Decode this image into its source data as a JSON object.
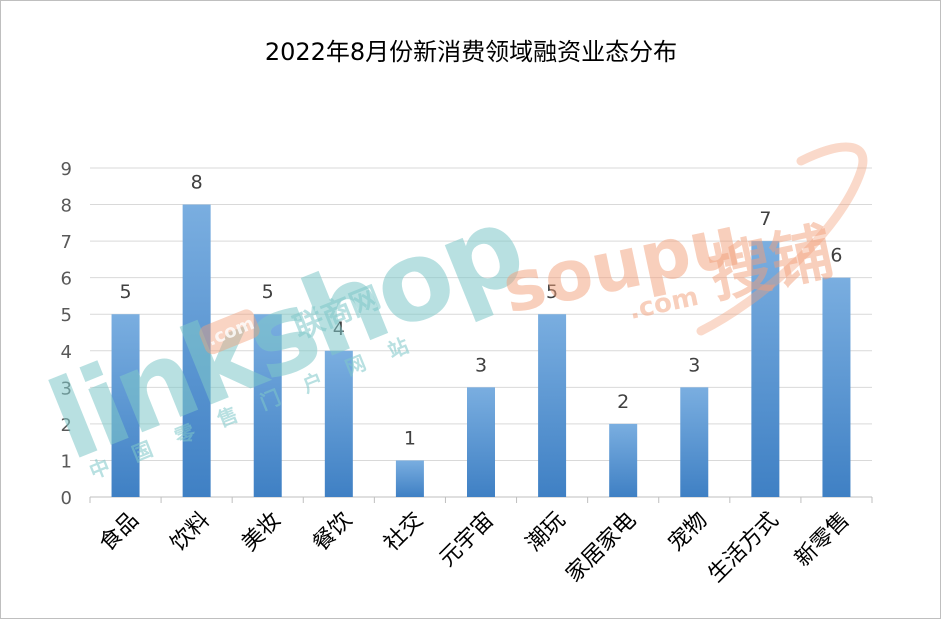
{
  "chart_data": {
    "type": "bar",
    "title": "2022年8月份新消费领域融资业态分布",
    "categories": [
      "食品",
      "饮料",
      "美妆",
      "餐饮",
      "社交",
      "元宇宙",
      "潮玩",
      "家居家电",
      "宠物",
      "生活方式",
      "新零售"
    ],
    "values": [
      5,
      8,
      5,
      4,
      1,
      3,
      5,
      2,
      3,
      7,
      6
    ],
    "ylim": [
      0,
      9
    ],
    "yticks": [
      0,
      1,
      2,
      3,
      4,
      5,
      6,
      7,
      8,
      9
    ],
    "xlabel": "",
    "ylabel": "",
    "grid": true,
    "legend": "none",
    "bar_color_top": "#7aaee0",
    "bar_color_bottom": "#3f80c4"
  },
  "watermarks": {
    "linkshop_logo": "linkshop",
    "linkshop_cn": "联商网",
    "linkshop_com": ".com",
    "linkshop_sub": "中国零售门户网站",
    "soupu_logo": "soupu",
    "soupu_cn": "搜铺",
    "soupu_com": ".com"
  }
}
